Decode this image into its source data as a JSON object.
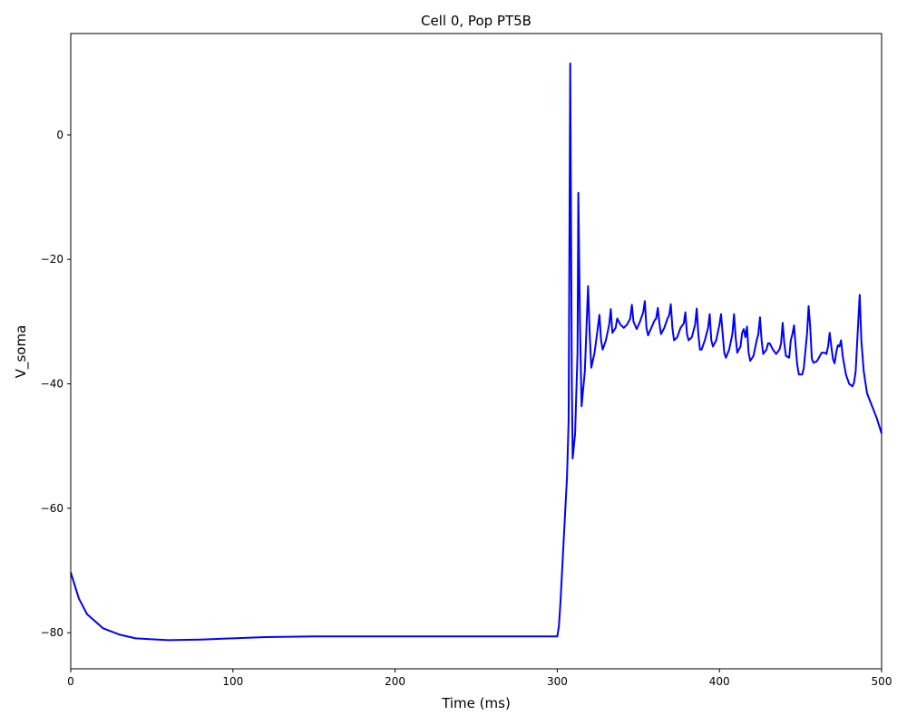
{
  "chart_data": {
    "type": "line",
    "title": "Cell 0, Pop PT5B",
    "x_label": "Time (ms)",
    "y_label": "V_soma",
    "color": "#0000ff",
    "x": [
      0,
      5,
      10,
      20,
      30,
      40,
      60,
      80,
      100,
      120,
      150,
      200,
      250,
      300,
      301,
      302,
      304,
      306,
      307,
      308,
      309,
      309.5,
      311,
      312.5,
      313,
      314,
      315,
      317,
      319,
      320,
      321,
      323,
      325,
      326,
      327,
      328,
      330,
      332,
      333,
      334,
      336,
      337,
      339,
      341,
      343,
      345,
      346,
      347,
      349,
      351,
      353,
      354,
      355,
      356,
      358,
      360,
      361,
      362,
      363,
      364,
      366,
      368,
      369,
      370,
      371,
      372,
      374,
      376,
      378,
      379,
      380,
      381,
      383,
      385,
      386,
      387,
      388,
      389,
      391,
      393,
      394,
      395,
      396,
      398,
      400,
      401,
      402,
      403,
      404,
      406,
      408,
      409,
      410,
      411,
      413,
      414,
      415,
      416,
      417,
      418,
      419,
      421,
      423,
      424,
      425,
      426,
      427,
      429,
      430,
      431,
      433,
      435,
      437,
      438,
      439,
      440,
      441,
      443,
      444,
      445,
      446,
      447,
      448,
      449,
      451,
      452,
      454,
      455,
      456,
      457,
      458,
      460,
      462,
      463,
      465,
      466,
      467,
      468,
      469,
      470,
      471,
      472,
      473,
      474,
      475,
      476,
      478,
      480,
      482,
      483,
      484,
      485,
      486.5,
      487.5,
      489,
      491,
      494,
      497,
      500
    ],
    "values": [
      -70.3,
      -74.5,
      -77,
      -79.3,
      -80.3,
      -80.9,
      -81.2,
      -81.1,
      -80.9,
      -80.7,
      -80.6,
      -80.6,
      -80.6,
      -80.6,
      -79,
      -75,
      -65,
      -55,
      -46,
      11.5,
      -40,
      -52,
      -48,
      -35,
      -9.3,
      -30,
      -43.6,
      -38,
      -24.3,
      -32,
      -37.4,
      -35,
      -31,
      -28.9,
      -33,
      -34.5,
      -33,
      -30.5,
      -28,
      -31.8,
      -31,
      -29.5,
      -30.5,
      -31,
      -30.5,
      -29.5,
      -27.3,
      -30,
      -31.2,
      -30,
      -28.5,
      -26.7,
      -31,
      -32.2,
      -31,
      -29.8,
      -29.5,
      -27.8,
      -30.3,
      -32,
      -31,
      -29.5,
      -29,
      -27.2,
      -31,
      -33,
      -32.5,
      -31,
      -30.3,
      -28.5,
      -32,
      -33,
      -32.5,
      -30.5,
      -27.9,
      -32,
      -34.5,
      -34.5,
      -33,
      -31,
      -28.8,
      -33,
      -34,
      -33,
      -30.5,
      -28.8,
      -32,
      -35,
      -35.8,
      -34.5,
      -32,
      -28.8,
      -32.5,
      -35,
      -34,
      -31.8,
      -31.2,
      -32.5,
      -30.8,
      -35,
      -36.3,
      -35.5,
      -33,
      -32,
      -29.3,
      -33,
      -35.2,
      -34.5,
      -33.5,
      -33.5,
      -34.5,
      -35.2,
      -34.5,
      -33.5,
      -30.2,
      -33.5,
      -35.5,
      -35.8,
      -33,
      -32,
      -30.6,
      -34,
      -37,
      -38.5,
      -38.5,
      -37.5,
      -32,
      -27.5,
      -31,
      -36,
      -36.6,
      -36.4,
      -35.5,
      -35,
      -35,
      -35.2,
      -34,
      -31.8,
      -34,
      -36,
      -36.7,
      -35,
      -33.8,
      -34,
      -33,
      -35.5,
      -38.5,
      -40,
      -40.4,
      -39.8,
      -38,
      -33,
      -25.7,
      -33,
      -38,
      -41.5,
      -43.5,
      -45.5,
      -48
    ],
    "xlim": [
      0,
      500
    ],
    "ylim": [
      -85.8,
      16.3
    ],
    "xticks": [
      0,
      100,
      200,
      300,
      400,
      500
    ],
    "yticks": [
      {
        "value": -80,
        "label": "−80"
      },
      {
        "value": -60,
        "label": "−60"
      },
      {
        "value": -40,
        "label": "−40"
      },
      {
        "value": -20,
        "label": "−20"
      },
      0
    ]
  }
}
